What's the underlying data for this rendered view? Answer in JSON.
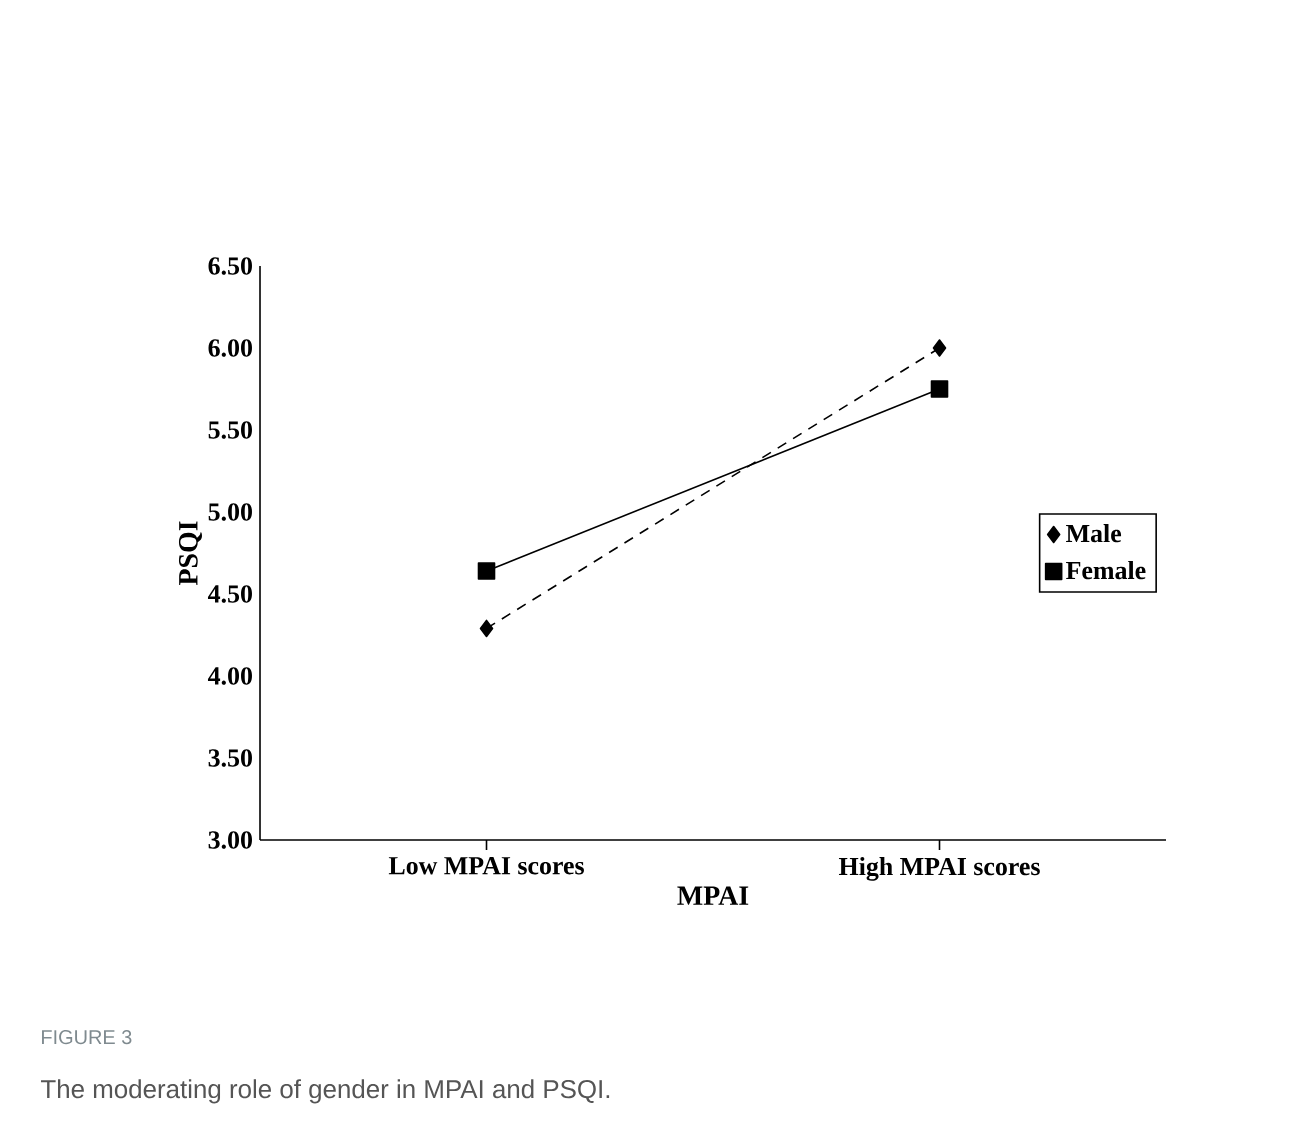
{
  "chart_data": {
    "type": "line",
    "xlabel": "MPAI",
    "ylabel": "PSQI",
    "categories": [
      "Low MPAI scores",
      "High MPAI scores"
    ],
    "series": [
      {
        "name": "Male",
        "color": "#000000",
        "values": [
          4.29,
          6.0
        ],
        "marker": "diamond",
        "line_style": "dashed"
      },
      {
        "name": "Female",
        "color": "#000000",
        "values": [
          4.64,
          5.75
        ],
        "marker": "square",
        "line_style": "solid"
      }
    ],
    "ylim": [
      3.0,
      6.5
    ],
    "yticks": [
      {
        "value": 3.0,
        "label": "3.00"
      },
      {
        "value": 3.5,
        "label": "3.50"
      },
      {
        "value": 4.0,
        "label": "4.00"
      },
      {
        "value": 4.5,
        "label": "4.50"
      },
      {
        "value": 5.0,
        "label": "5.00"
      },
      {
        "value": 5.5,
        "label": "5.50"
      },
      {
        "value": 6.0,
        "label": "6.00"
      },
      {
        "value": 6.5,
        "label": "6.50"
      }
    ],
    "legend": "right",
    "annotations": [
      "FIGURE 3",
      "The moderating role of gender in MPAI and PSQI."
    ]
  }
}
